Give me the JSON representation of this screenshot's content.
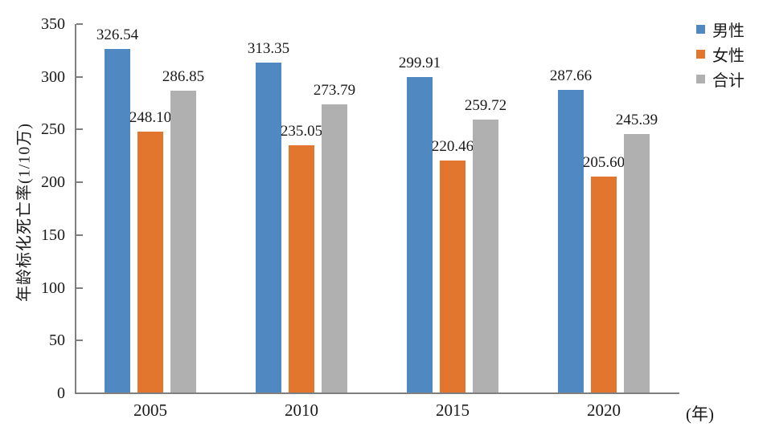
{
  "chart_data": {
    "type": "bar",
    "title": "",
    "categories": [
      "2005",
      "2010",
      "2015",
      "2020"
    ],
    "series": [
      {
        "name": "男性",
        "color": "#5089C2",
        "values": [
          326.54,
          313.35,
          299.91,
          287.66
        ]
      },
      {
        "name": "女性",
        "color": "#E2762F",
        "values": [
          248.1,
          235.05,
          220.46,
          205.6
        ]
      },
      {
        "name": "合计",
        "color": "#B0B0B0",
        "values": [
          286.85,
          273.79,
          259.72,
          245.39
        ]
      }
    ],
    "ylabel": "年龄标化死亡率(1/10万)",
    "x_unit_label": "(年)",
    "ylim": [
      0,
      350
    ],
    "ytick_step": 50,
    "grid": false,
    "legend_position": "top-right",
    "value_labels": true,
    "value_decimals": 2,
    "axis_color": "#7f7f7f"
  }
}
